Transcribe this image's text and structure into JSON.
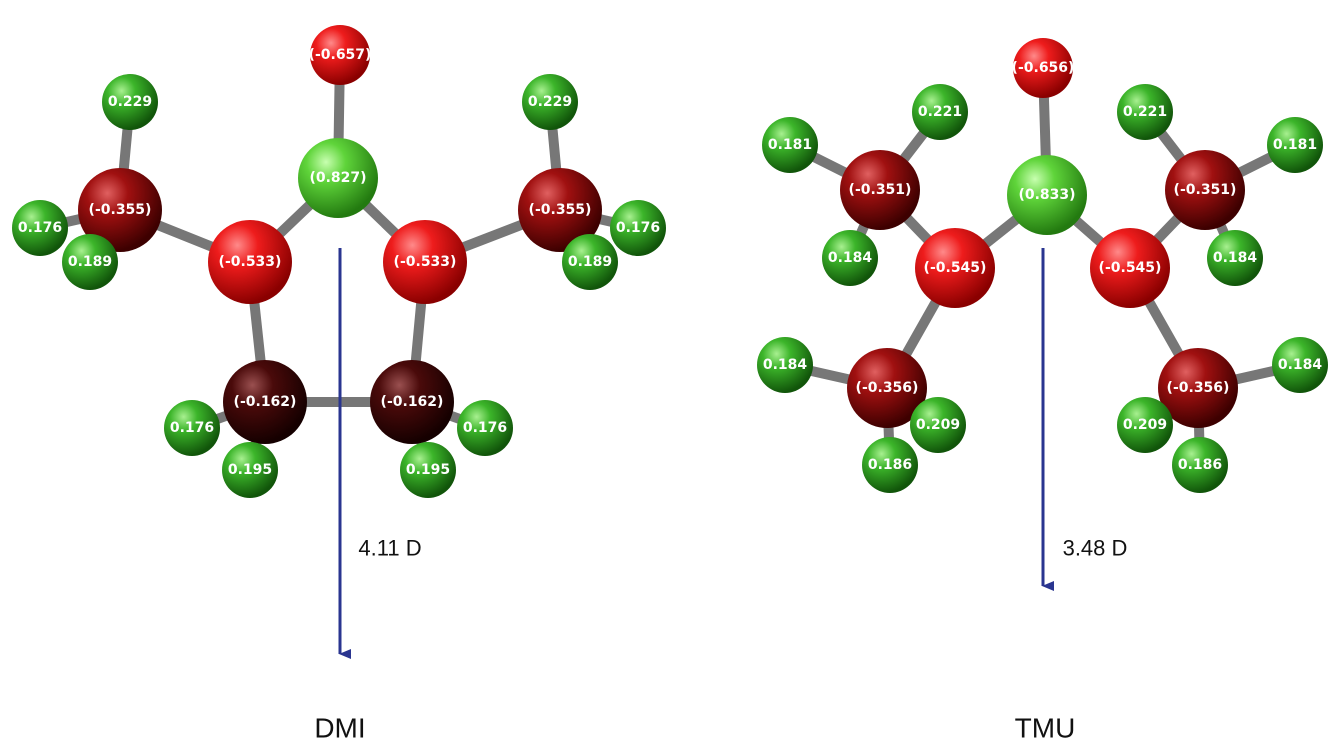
{
  "molecules": [
    {
      "name": "DMI",
      "dipole": "4.11 D",
      "atoms": [
        "(-0.657)",
        "(0.827)",
        "(-0.533)",
        "(-0.533)",
        "(-0.355)",
        "(-0.355)",
        "0.229",
        "0.229",
        "0.176",
        "0.189",
        "0.176",
        "0.189",
        "(-0.162)",
        "(-0.162)",
        "0.176",
        "0.195",
        "0.176",
        "0.195"
      ]
    },
    {
      "name": "TMU",
      "dipole": "3.48 D",
      "atoms": [
        "(-0.656)",
        "(0.833)",
        "(-0.545)",
        "(-0.545)",
        "(-0.351)",
        "(-0.351)",
        "0.221",
        "0.221",
        "0.181",
        "0.181",
        "0.184",
        "0.184",
        "(-0.356)",
        "(-0.356)",
        "0.184",
        "0.184",
        "0.209",
        "0.209",
        "0.186",
        "0.186"
      ]
    }
  ]
}
